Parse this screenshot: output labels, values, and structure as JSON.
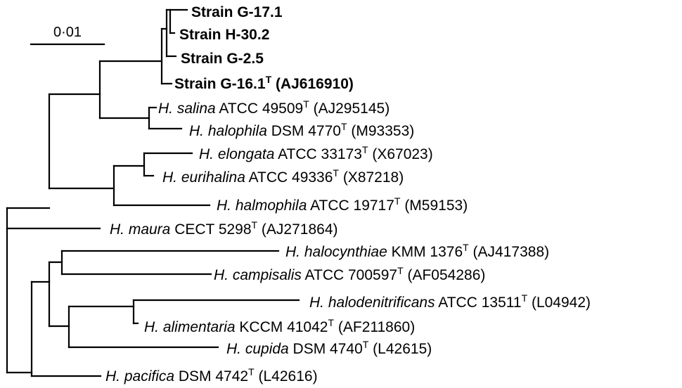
{
  "scale_bar": {
    "label": "0·01"
  },
  "taxa": [
    {
      "id": "g171",
      "bold": true,
      "genus": "",
      "name": "Strain G-17.1",
      "collection": "",
      "type_strain": false,
      "accession": ""
    },
    {
      "id": "h302",
      "bold": true,
      "genus": "",
      "name": "Strain H-30.2",
      "collection": "",
      "type_strain": false,
      "accession": ""
    },
    {
      "id": "g25",
      "bold": true,
      "genus": "",
      "name": "Strain G-2.5",
      "collection": "",
      "type_strain": false,
      "accession": ""
    },
    {
      "id": "g161",
      "bold": true,
      "genus": "",
      "name": "Strain G-16.1",
      "collection": "",
      "type_strain": true,
      "accession": "(AJ616910)"
    },
    {
      "id": "salina",
      "bold": false,
      "genus": "H.",
      "name": "salina",
      "collection": "ATCC 49509",
      "type_strain": true,
      "accession": "(AJ295145)"
    },
    {
      "id": "halophila",
      "bold": false,
      "genus": "H.",
      "name": "halophila",
      "collection": "DSM 4770",
      "type_strain": true,
      "accession": "(M93353)"
    },
    {
      "id": "elongata",
      "bold": false,
      "genus": "H.",
      "name": "elongata",
      "collection": "ATCC 33173",
      "type_strain": true,
      "accession": "(X67023)"
    },
    {
      "id": "eurihalina",
      "bold": false,
      "genus": "H.",
      "name": "eurihalina",
      "collection": "ATCC 49336",
      "type_strain": true,
      "accession": "(X87218)"
    },
    {
      "id": "halmophila",
      "bold": false,
      "genus": "H.",
      "name": "halmophila",
      "collection": "ATCC 19717",
      "type_strain": true,
      "accession": "(M59153)"
    },
    {
      "id": "maura",
      "bold": false,
      "genus": "H.",
      "name": "maura",
      "collection": "CECT 5298",
      "type_strain": true,
      "accession": "(AJ271864)"
    },
    {
      "id": "halocynthiae",
      "bold": false,
      "genus": "H.",
      "name": "halocynthiae",
      "collection": "KMM 1376",
      "type_strain": true,
      "accession": "(AJ417388)"
    },
    {
      "id": "campisalis",
      "bold": false,
      "genus": "H.",
      "name": "campisalis",
      "collection": "ATCC 700597",
      "type_strain": true,
      "accession": "(AF054286)"
    },
    {
      "id": "halodenitrificans",
      "bold": false,
      "genus": "H.",
      "name": "halodenitrificans",
      "collection": "ATCC 13511",
      "type_strain": true,
      "accession": "(L04942)"
    },
    {
      "id": "alimentaria",
      "bold": false,
      "genus": "H.",
      "name": "alimentaria",
      "collection": "KCCM 41042",
      "type_strain": true,
      "accession": "(AF211860)"
    },
    {
      "id": "cupida",
      "bold": false,
      "genus": "H.",
      "name": "cupida",
      "collection": "DSM 4740",
      "type_strain": true,
      "accession": "(L42615)"
    },
    {
      "id": "pacifica",
      "bold": false,
      "genus": "H.",
      "name": "pacifica",
      "collection": "DSM 4742",
      "type_strain": true,
      "accession": "(L42616)"
    }
  ],
  "type_marker": "T"
}
